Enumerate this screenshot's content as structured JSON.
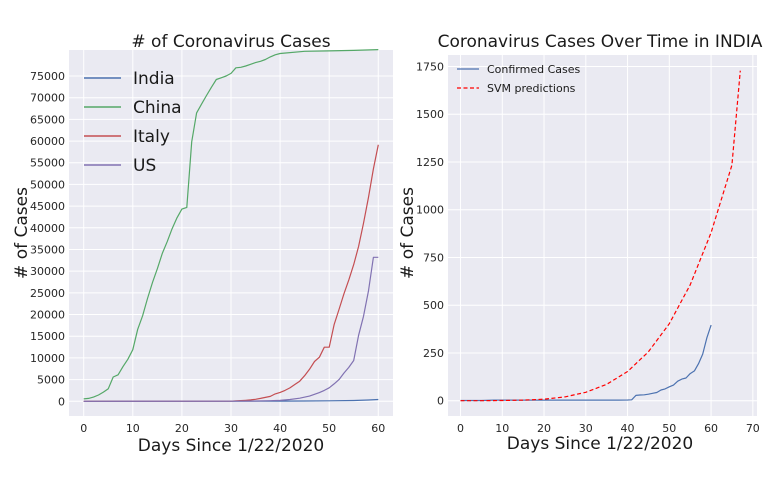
{
  "chart_data": [
    {
      "type": "line",
      "title": "# of Coronavirus Cases",
      "xlabel": "Days Since 1/22/2020",
      "ylabel": "# of Cases",
      "xlim": [
        -3,
        63
      ],
      "ylim": [
        -3400,
        81000
      ],
      "xticks": [
        0,
        10,
        20,
        30,
        40,
        50,
        60
      ],
      "yticks": [
        0,
        5000,
        10000,
        15000,
        20000,
        25000,
        30000,
        35000,
        40000,
        45000,
        50000,
        55000,
        60000,
        65000,
        70000,
        75000
      ],
      "grid": true,
      "legend_position": "top-left",
      "series": [
        {
          "name": "India",
          "color": "#4c72b0",
          "x": [
            0,
            10,
            20,
            30,
            40,
            45,
            50,
            55,
            58,
            60
          ],
          "y": [
            0,
            3,
            3,
            5,
            30,
            60,
            110,
            170,
            300,
            396
          ]
        },
        {
          "name": "China",
          "color": "#55a868",
          "x": [
            0,
            1,
            2,
            3,
            4,
            5,
            6,
            7,
            8,
            9,
            10,
            11,
            12,
            13,
            14,
            15,
            16,
            17,
            18,
            19,
            20,
            21,
            22,
            23,
            24,
            25,
            26,
            27,
            28,
            29,
            30,
            31,
            32,
            33,
            34,
            35,
            36,
            37,
            38,
            39,
            40,
            45,
            50,
            55,
            60
          ],
          "y": [
            550,
            650,
            950,
            1450,
            2100,
            2900,
            5600,
            6100,
            8000,
            9700,
            11900,
            16600,
            19700,
            23700,
            27400,
            30600,
            34100,
            36800,
            39800,
            42300,
            44300,
            44700,
            59800,
            66500,
            68500,
            70500,
            72400,
            74200,
            74600,
            75000,
            75600,
            76900,
            77000,
            77300,
            77700,
            78100,
            78400,
            78800,
            79400,
            79900,
            80200,
            80700,
            80800,
            80900,
            81100
          ]
        },
        {
          "name": "Italy",
          "color": "#c44e52",
          "x": [
            0,
            29,
            30,
            31,
            32,
            33,
            34,
            35,
            36,
            37,
            38,
            39,
            40,
            41,
            42,
            43,
            44,
            45,
            46,
            47,
            48,
            49,
            50,
            51,
            52,
            53,
            54,
            55,
            56,
            57,
            58,
            59,
            60
          ],
          "y": [
            0,
            3,
            20,
            79,
            150,
            227,
            320,
            445,
            650,
            888,
            1128,
            1694,
            2036,
            2502,
            3089,
            3858,
            4636,
            5883,
            7375,
            9172,
            10149,
            12462,
            12462,
            17660,
            21157,
            24747,
            27980,
            31506,
            35713,
            41035,
            47021,
            53578,
            59138
          ]
        },
        {
          "name": "US",
          "color": "#8172b2",
          "x": [
            0,
            30,
            35,
            38,
            40,
            42,
            44,
            46,
            47,
            48,
            49,
            50,
            51,
            52,
            53,
            54,
            55,
            56,
            57,
            58,
            59,
            60
          ],
          "y": [
            0,
            15,
            60,
            120,
            200,
            400,
            700,
            1200,
            1600,
            2000,
            2500,
            3100,
            4000,
            5000,
            6500,
            7800,
            9400,
            15200,
            19600,
            25500,
            33200,
            33200
          ]
        }
      ]
    },
    {
      "type": "line",
      "title": "Coronavirus Cases Over Time in INDIA",
      "xlabel": "Days Since 1/22/2020",
      "ylabel": "# of Cases",
      "xlim": [
        -3,
        71
      ],
      "ylim": [
        -80,
        1810
      ],
      "xticks": [
        0,
        10,
        20,
        30,
        40,
        50,
        60,
        70
      ],
      "yticks": [
        0,
        250,
        500,
        750,
        1000,
        1250,
        1500,
        1750
      ],
      "grid": true,
      "legend_position": "top-left",
      "series": [
        {
          "name": "Confirmed Cases",
          "color": "#4c72b0",
          "style": "solid",
          "x": [
            0,
            5,
            8,
            9,
            10,
            20,
            30,
            35,
            38,
            40,
            41,
            42,
            43,
            44,
            45,
            46,
            47,
            48,
            49,
            50,
            51,
            52,
            53,
            54,
            55,
            56,
            57,
            58,
            59,
            60
          ],
          "y": [
            1,
            1,
            3,
            3,
            3,
            3,
            3,
            3,
            3,
            4,
            5,
            28,
            30,
            31,
            34,
            39,
            43,
            56,
            62,
            73,
            82,
            102,
            113,
            119,
            142,
            156,
            194,
            244,
            330,
            396
          ]
        },
        {
          "name": "SVM predictions",
          "color": "#ff0000",
          "style": "dashed",
          "x": [
            0,
            5,
            10,
            15,
            20,
            25,
            30,
            35,
            40,
            45,
            50,
            55,
            60,
            65,
            67
          ],
          "y": [
            0,
            0,
            1,
            3,
            8,
            20,
            44,
            86,
            153,
            256,
            403,
            607,
            880,
            1233,
            1728
          ]
        }
      ]
    }
  ]
}
